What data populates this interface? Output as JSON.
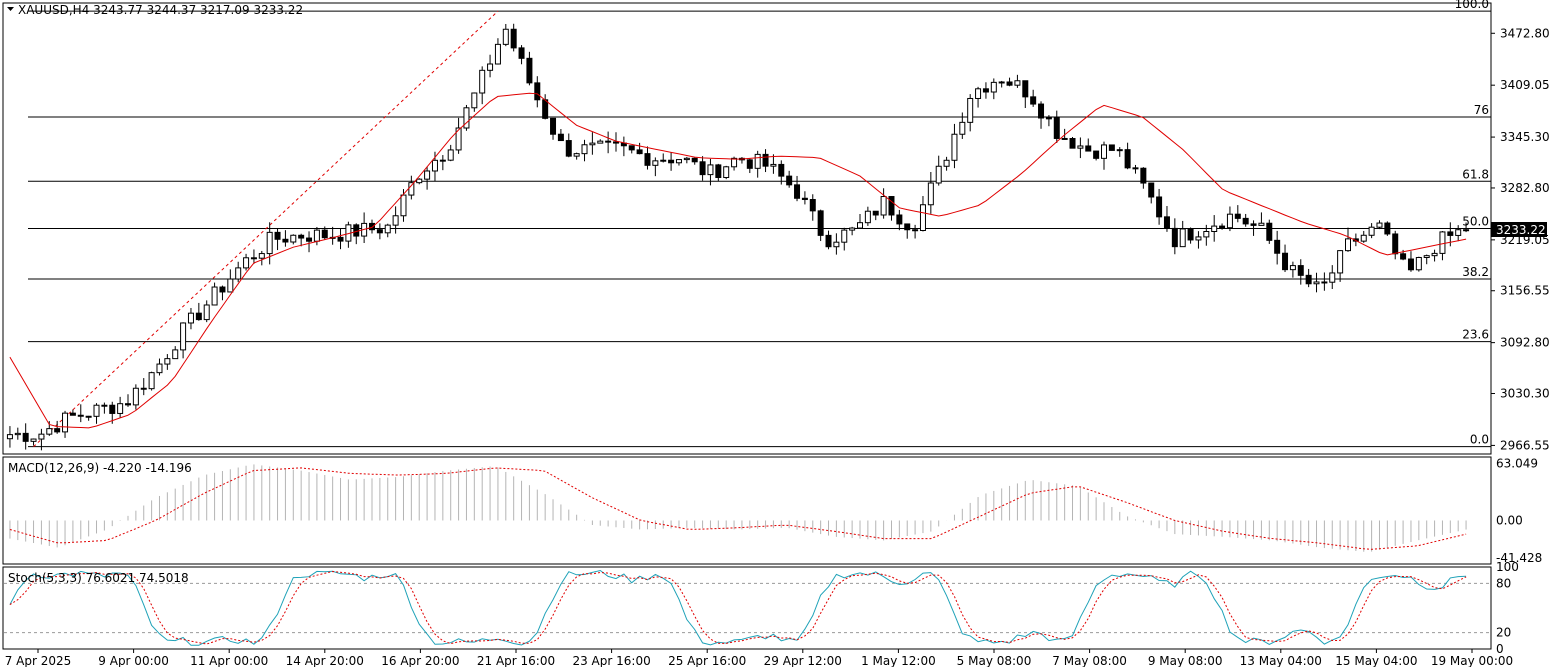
{
  "header": {
    "symbol_line": "XAUUSD,H4  3243.77 3244.37 3217.09 3233.22",
    "current_price": "3233.22"
  },
  "colors": {
    "candle_stroke": "#000000",
    "bull_fill": "#ffffff",
    "bear_fill": "#000000",
    "ma_line": "#e00000",
    "fib_line": "#000000",
    "trend_line": "#e00000",
    "macd_hist": "#b4b4b4",
    "macd_signal": "#e00000",
    "stoch_main": "#1fa2b8",
    "stoch_signal": "#e00000",
    "price_tag_bg": "#000000",
    "price_tag_text": "#ffffff"
  },
  "price_axis": {
    "ticks": [
      "3472.80",
      "3409.05",
      "3345.30",
      "3282.80",
      "3219.05",
      "3156.55",
      "3092.80",
      "3030.30",
      "2966.55"
    ],
    "range": [
      2956,
      3510
    ]
  },
  "fib_levels": [
    {
      "label": "100.0",
      "price": 3500
    },
    {
      "label": "76",
      "price": 3370
    },
    {
      "label": "61.8",
      "price": 3291
    },
    {
      "label": "50.0",
      "price": 3233
    },
    {
      "label": "38.2",
      "price": 3171
    },
    {
      "label": "23.6",
      "price": 3094
    },
    {
      "label": "0.0",
      "price": 2965
    }
  ],
  "time_axis": {
    "labels": [
      "7 Apr 2025",
      "9 Apr 00:00",
      "11 Apr 00:00",
      "14 Apr 20:00",
      "16 Apr 20:00",
      "21 Apr 16:00",
      "23 Apr 16:00",
      "25 Apr 16:00",
      "29 Apr 12:00",
      "1 May 12:00",
      "5 May 08:00",
      "7 May 08:00",
      "9 May 08:00",
      "13 May 04:00",
      "15 May 04:00",
      "19 May 00:00"
    ]
  },
  "macd": {
    "label": "MACD(12,26,9) -4.220 -14.196",
    "ticks": [
      "63.049",
      "0.00",
      "-41.428"
    ],
    "range": [
      -48,
      70
    ]
  },
  "stoch": {
    "label": "Stoch(5,3,3) 76.6021 74.5018",
    "ticks": [
      "100",
      "80",
      "20",
      "0"
    ],
    "levels": [
      80,
      20
    ]
  },
  "chart_data": {
    "type": "candlestick",
    "key_prices": [
      2980,
      2980,
      3000,
      3010,
      3020,
      3060,
      3110,
      3150,
      3190,
      3220,
      3225,
      3225,
      3230,
      3235,
      3300,
      3330,
      3400,
      3480,
      3400,
      3330,
      3330,
      3330,
      3320,
      3320,
      3300,
      3320,
      3310,
      3280,
      3220,
      3230,
      3265,
      3235,
      3310,
      3400,
      3420,
      3400,
      3350,
      3330,
      3330,
      3280,
      3220,
      3235,
      3250,
      3230,
      3180,
      3155,
      3215,
      3235,
      3175,
      3215,
      3233
    ],
    "ma_key": [
      3075,
      2990,
      2988,
      3005,
      3045,
      3120,
      3190,
      3210,
      3222,
      3235,
      3290,
      3350,
      3395,
      3400,
      3360,
      3340,
      3330,
      3320,
      3318,
      3322,
      3320,
      3298,
      3258,
      3248,
      3262,
      3300,
      3345,
      3385,
      3370,
      3330,
      3280,
      3260,
      3240,
      3225,
      3200,
      3210,
      3220
    ]
  }
}
